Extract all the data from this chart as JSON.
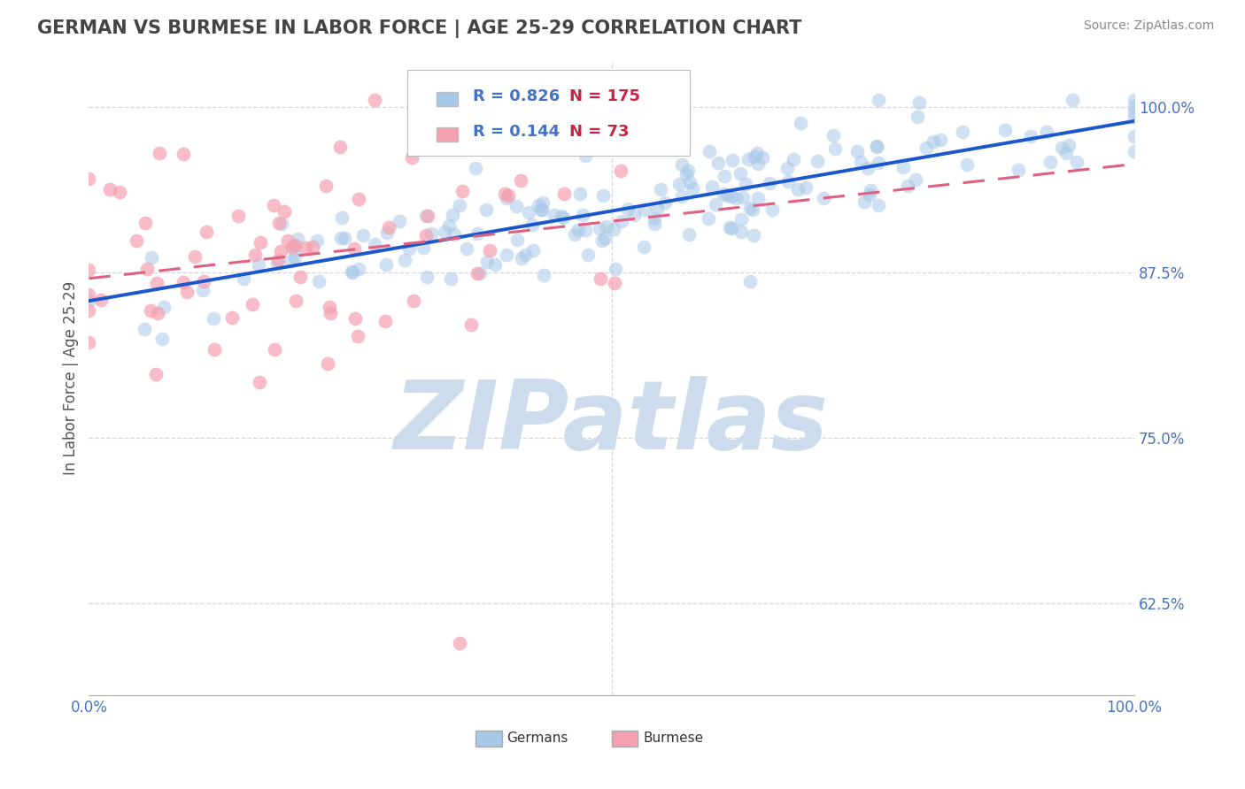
{
  "title": "GERMAN VS BURMESE IN LABOR FORCE | AGE 25-29 CORRELATION CHART",
  "source_text": "Source: ZipAtlas.com",
  "ylabel": "In Labor Force | Age 25-29",
  "xlim": [
    0.0,
    1.0
  ],
  "ylim": [
    0.555,
    1.035
  ],
  "yticks": [
    0.625,
    0.75,
    0.875,
    1.0
  ],
  "ytick_labels": [
    "62.5%",
    "75.0%",
    "87.5%",
    "100.0%"
  ],
  "xticks": [
    0.0,
    0.25,
    0.5,
    0.75,
    1.0
  ],
  "xtick_labels": [
    "0.0%",
    "",
    "",
    "",
    "100.0%"
  ],
  "german_R": 0.826,
  "german_N": 175,
  "burmese_R": 0.144,
  "burmese_N": 73,
  "german_color": "#a8c8e8",
  "burmese_color": "#f4a0b0",
  "trend_german_color": "#1a56cc",
  "trend_burmese_color": "#e06080",
  "background_color": "#ffffff",
  "grid_color": "#cccccc",
  "watermark_text": "ZIPatlas",
  "watermark_color": "#ccdcec",
  "title_color": "#444444",
  "legend_german_label": "Germans",
  "legend_burmese_label": "Burmese",
  "axis_label_color": "#4472c4",
  "seed": 42,
  "dot_size": 130,
  "dot_alpha": 0.55
}
